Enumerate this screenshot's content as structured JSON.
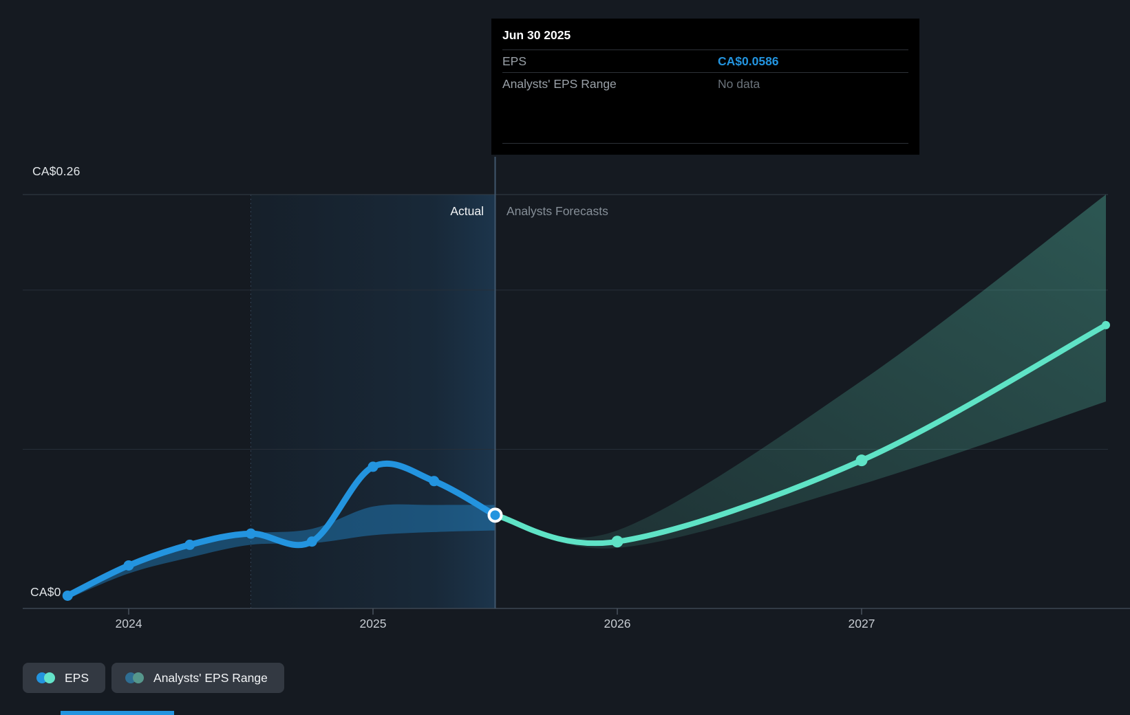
{
  "tooltip": {
    "title": "Jun 30 2025",
    "rows": [
      {
        "label": "EPS",
        "value": "CA$0.0586"
      },
      {
        "label": "Analysts' EPS Range",
        "value": "No data"
      }
    ]
  },
  "chart": {
    "y_max_label": "CA$0.26",
    "y_min_label": "CA$0",
    "actual_label": "Actual",
    "forecast_label": "Analysts Forecasts"
  },
  "legend": [
    {
      "label": "EPS",
      "colors": [
        "#2394df",
        "#64e3c9"
      ]
    },
    {
      "label": "Analysts' EPS Range",
      "colors": [
        "#2f6e93",
        "#56978c"
      ]
    }
  ],
  "colors": {
    "accent_blue": "#2394df",
    "accent_teal": "#5fe3c6",
    "past_range_fill": "rgba(35,148,223,0.40)",
    "forecast_range_fill_lo": "rgba(100,228,198,0.10)",
    "forecast_range_fill_hi": "rgba(100,228,198,0.30)",
    "divider": "#40566c",
    "grid_major": "#343d48",
    "grid_minor": "#272f39",
    "axis": "#3c4652",
    "tick": "#49525e",
    "tick_label": "#c6cbd1"
  },
  "chart_data": {
    "type": "line",
    "title": "EPS actual vs analysts forecast",
    "currency": "CA$",
    "ylim": [
      0,
      0.26
    ],
    "y_gridline_values": [
      0,
      0.1,
      0.2,
      0.26
    ],
    "x_ticks": [
      {
        "label": "2024",
        "t": 2024.0
      },
      {
        "label": "2025",
        "t": 2025.0
      },
      {
        "label": "2026",
        "t": 2026.0
      },
      {
        "label": "2027",
        "t": 2027.0
      }
    ],
    "divider": {
      "t": 2025.5,
      "date": "Jun 30 2025"
    },
    "highlight_span": {
      "from_t": 2024.5,
      "to_t": 2025.5
    },
    "current_point": {
      "date": "Jun 30 2025",
      "value": 0.0586,
      "style": "white-ring"
    },
    "series": [
      {
        "name": "EPS (actual)",
        "color": "#2394df",
        "points": [
          {
            "date": "Sep 30 2023",
            "t": 2023.75,
            "value": 0.008
          },
          {
            "date": "Dec 31 2023",
            "t": 2024.0,
            "value": 0.027
          },
          {
            "date": "Mar 31 2024",
            "t": 2024.25,
            "value": 0.04
          },
          {
            "date": "Jun 30 2024",
            "t": 2024.5,
            "value": 0.047
          },
          {
            "date": "Sep 30 2024",
            "t": 2024.75,
            "value": 0.042
          },
          {
            "date": "Dec 31 2024",
            "t": 2025.0,
            "value": 0.089
          },
          {
            "date": "Mar 31 2025",
            "t": 2025.25,
            "value": 0.08
          },
          {
            "date": "Jun 30 2025",
            "t": 2025.5,
            "value": 0.0586
          }
        ]
      },
      {
        "name": "EPS (analysts forecast)",
        "color": "#5fe3c6",
        "points": [
          {
            "date": "Jun 30 2025",
            "t": 2025.5,
            "value": 0.0586
          },
          {
            "date": "Dec 31 2025",
            "t": 2026.0,
            "value": 0.042
          },
          {
            "date": "Dec 31 2026",
            "t": 2027.0,
            "value": 0.093
          },
          {
            "date": "Dec 31 2027",
            "t": 2028.0,
            "value": 0.178
          }
        ]
      }
    ],
    "past_analyst_range": [
      {
        "t": 2023.75,
        "hi": 0.008,
        "lo": 0.006
      },
      {
        "t": 2024.0,
        "hi": 0.027,
        "lo": 0.022
      },
      {
        "t": 2024.25,
        "hi": 0.04,
        "lo": 0.032
      },
      {
        "t": 2024.5,
        "hi": 0.047,
        "lo": 0.04
      },
      {
        "t": 2024.75,
        "hi": 0.05,
        "lo": 0.041
      },
      {
        "t": 2025.0,
        "hi": 0.064,
        "lo": 0.046
      },
      {
        "t": 2025.25,
        "hi": 0.065,
        "lo": 0.048
      },
      {
        "t": 2025.5,
        "hi": 0.065,
        "lo": 0.049
      }
    ],
    "forecast_analyst_range": [
      {
        "t": 2025.5,
        "hi": 0.0586,
        "lo": 0.0586
      },
      {
        "t": 2026.0,
        "hi": 0.049,
        "lo": 0.038
      },
      {
        "t": 2027.0,
        "hi": 0.143,
        "lo": 0.078
      },
      {
        "t": 2028.0,
        "hi": 0.26,
        "lo": 0.13
      }
    ],
    "grid": true,
    "legend_position": "bottom-left"
  }
}
